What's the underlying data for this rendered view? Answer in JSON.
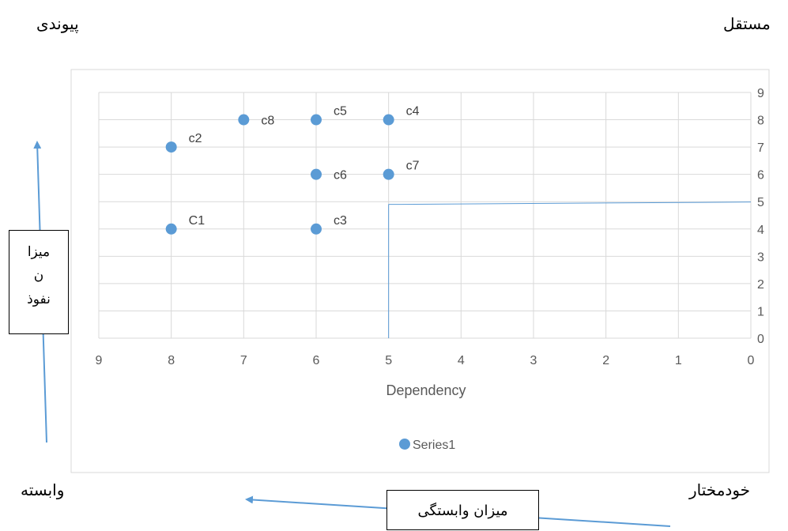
{
  "corners": {
    "top_left": "پیوندی",
    "top_right": "مستقل",
    "bottom_left": "وابسته",
    "bottom_right": "خودمختار"
  },
  "influence_box": {
    "line1": "میزا",
    "line2": "ن",
    "line3": "نفوذ"
  },
  "dependency_box": {
    "label": "میزان وابستگی"
  },
  "colors": {
    "series": "#5B9BD5",
    "grid": "#D9D9D9",
    "arrow": "#5B9BD5",
    "divider": "#5B9BD5"
  },
  "chart_data": {
    "type": "scatter",
    "xlabel": "Dependency",
    "x_reversed": true,
    "xlim": [
      0,
      9
    ],
    "ylim": [
      0,
      9
    ],
    "x_ticks": [
      "0",
      "1",
      "2",
      "3",
      "4",
      "5",
      "6",
      "7",
      "8",
      "9"
    ],
    "y_ticks": [
      "0",
      "1",
      "2",
      "3",
      "4",
      "5",
      "6",
      "7",
      "8",
      "9"
    ],
    "grid": true,
    "legend": {
      "position": "bottom",
      "entries": [
        "Series1"
      ]
    },
    "series": [
      {
        "name": "Series1",
        "points": [
          {
            "label": "C1",
            "x": 8,
            "y": 4
          },
          {
            "label": "c2",
            "x": 8,
            "y": 7
          },
          {
            "label": "c3",
            "x": 6,
            "y": 4
          },
          {
            "label": "c4",
            "x": 5,
            "y": 8
          },
          {
            "label": "c5",
            "x": 6,
            "y": 8
          },
          {
            "label": "c6",
            "x": 6,
            "y": 6
          },
          {
            "label": "c7",
            "x": 5,
            "y": 6
          },
          {
            "label": "c8",
            "x": 7,
            "y": 8
          }
        ]
      }
    ],
    "divider": {
      "x": 5,
      "y": 4.9
    }
  }
}
